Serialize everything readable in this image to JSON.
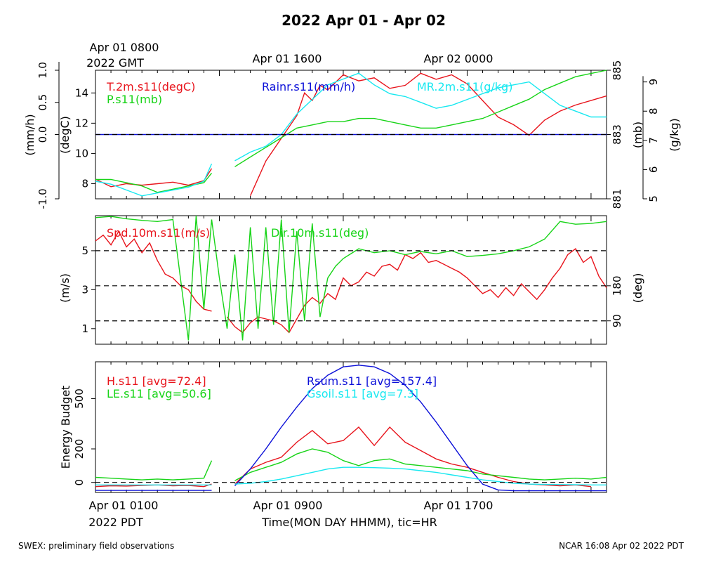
{
  "page": {
    "title": "2022 Apr 01 - Apr 02",
    "footer_left": "SWEX: preliminary field observations",
    "footer_right": "NCAR 16:08 Apr 02 2022 PDT"
  },
  "top_axis": {
    "labels": [
      {
        "text": "Apr 01 0800",
        "text2": "2022 GMT"
      },
      {
        "text": "Apr 01 1600"
      },
      {
        "text": "Apr 02 0000"
      }
    ]
  },
  "bottom_axis": {
    "labels": [
      {
        "text": "Apr 01 0100",
        "text2": "2022 PDT"
      },
      {
        "text": "Apr 01 0900"
      },
      {
        "text": "Apr 01 1700"
      }
    ],
    "xlabel": "Time(MON DAY HHMM), tic=HR"
  },
  "colors": {
    "red": "#e8141c",
    "green": "#18d418",
    "cyan": "#18e8f0",
    "blue": "#0c10d8",
    "black": "#000000"
  },
  "chart_data": [
    {
      "type": "line",
      "panel": "meteorology",
      "x_unit": "hours since Apr 01 0100 PDT",
      "xlim": [
        0,
        33
      ],
      "axes": {
        "rain": {
          "label": "(mm/h)",
          "ylim": [
            -1.0,
            1.0
          ],
          "ticks": [
            "-1.0",
            "0.0",
            "0.5",
            "1.0"
          ],
          "tick_values": [
            -1.0,
            0.0,
            0.5,
            1.0
          ]
        },
        "temp": {
          "label": "(degC)",
          "ylim": [
            7,
            15.5
          ],
          "ticks": [
            "8",
            "10",
            "12",
            "14"
          ],
          "tick_values": [
            8,
            10,
            12,
            14
          ]
        },
        "pres": {
          "label": "(mb)",
          "ylim": [
            881,
            885
          ],
          "ticks": [
            "881",
            "883",
            "885"
          ],
          "tick_values": [
            881,
            883,
            885
          ]
        },
        "mr": {
          "label": "(g/kg)",
          "ylim": [
            5,
            9.4
          ],
          "ticks": [
            "5",
            "6",
            "7",
            "8",
            "9"
          ],
          "tick_values": [
            5,
            6,
            7,
            8,
            9
          ]
        }
      },
      "series": [
        {
          "name": "T.2m.s11(degC)",
          "color_key": "red",
          "axis": "temp",
          "x": [
            0,
            1,
            2,
            3,
            4,
            5,
            6,
            7,
            7.5,
            8.5,
            10,
            11,
            12,
            13,
            13.5,
            14,
            14.5,
            15,
            16,
            17,
            18,
            19,
            20,
            21,
            22,
            23,
            24,
            25,
            26,
            27,
            28,
            29,
            30,
            31,
            32,
            33
          ],
          "y": [
            8.3,
            7.8,
            8.0,
            7.9,
            8.0,
            8.1,
            7.9,
            8.2,
            9.0,
            null,
            7.2,
            9.5,
            11.0,
            12.5,
            14.0,
            13.5,
            14.5,
            14.2,
            15.2,
            14.8,
            15.0,
            14.3,
            14.5,
            15.3,
            14.9,
            15.2,
            14.6,
            13.5,
            12.4,
            11.9,
            11.2,
            12.2,
            12.8,
            13.2,
            13.5,
            13.8
          ]
        },
        {
          "name": "P.s11(mb)",
          "color_key": "green",
          "axis": "pres",
          "x": [
            0,
            1,
            2,
            3,
            4,
            5,
            6,
            7,
            7.5,
            8.5,
            9,
            10,
            11,
            12,
            13,
            14,
            15,
            16,
            17,
            18,
            19,
            20,
            21,
            22,
            23,
            24,
            25,
            26,
            27,
            28,
            29,
            30,
            31,
            32,
            33
          ],
          "y": [
            881.6,
            881.6,
            881.5,
            881.4,
            881.2,
            881.3,
            881.4,
            881.5,
            881.8,
            null,
            882.0,
            882.3,
            882.6,
            882.9,
            883.2,
            883.3,
            883.4,
            883.4,
            883.5,
            883.5,
            883.4,
            883.3,
            883.2,
            883.2,
            883.3,
            883.4,
            883.5,
            883.7,
            883.9,
            884.1,
            884.4,
            884.6,
            884.8,
            884.9,
            885.0
          ]
        },
        {
          "name": "MR.2m.s11(g/kg)",
          "color_key": "cyan",
          "axis": "mr",
          "x": [
            0,
            1,
            2,
            3,
            4,
            5,
            6,
            7,
            7.5,
            8.5,
            9,
            10,
            11,
            12,
            13,
            14,
            15,
            16,
            17,
            18,
            19,
            20,
            21,
            22,
            23,
            24,
            25,
            26,
            27,
            28,
            29,
            30,
            31,
            32,
            33
          ],
          "y": [
            5.6,
            5.5,
            5.3,
            5.1,
            5.2,
            5.3,
            5.4,
            5.6,
            6.2,
            null,
            6.3,
            6.6,
            6.8,
            7.2,
            7.9,
            8.4,
            8.9,
            9.1,
            9.3,
            8.9,
            8.6,
            8.5,
            8.3,
            8.1,
            8.2,
            8.4,
            8.6,
            8.8,
            8.9,
            9.0,
            8.6,
            8.2,
            8.0,
            7.8,
            7.8
          ]
        },
        {
          "name": "Rainr.s11(mm/h)",
          "color_key": "blue",
          "axis": "rain",
          "x": [
            0,
            33
          ],
          "y": [
            0.0,
            0.0
          ]
        }
      ],
      "reference_lines": [
        {
          "axis": "rain",
          "value": 0.0
        }
      ]
    },
    {
      "type": "line",
      "panel": "wind",
      "x_unit": "hours since Apr 01 0100 PDT",
      "xlim": [
        0,
        33
      ],
      "axes": {
        "spd": {
          "label": "(m/s)",
          "ylim": [
            0.2,
            6.8
          ],
          "ticks": [
            "1",
            "3",
            "5"
          ],
          "tick_values": [
            1,
            3,
            5
          ]
        },
        "dir": {
          "label": "(deg)",
          "ylim": [
            30,
            360
          ],
          "ticks": [
            "90",
            "180"
          ],
          "tick_values": [
            90,
            180
          ]
        }
      },
      "series": [
        {
          "name": "Spd.10m.s11(m/s)",
          "color_key": "red",
          "axis": "spd",
          "x": [
            0,
            0.5,
            1,
            1.5,
            2,
            2.5,
            3,
            3.5,
            4,
            4.5,
            5,
            5.5,
            6,
            6.5,
            7,
            7.5,
            8,
            8.5,
            9,
            9.5,
            10,
            10.5,
            11,
            11.5,
            12,
            12.5,
            13,
            13.5,
            14,
            14.5,
            15,
            15.5,
            16,
            16.5,
            17,
            17.5,
            18,
            18.5,
            19,
            19.5,
            20,
            20.5,
            21,
            21.5,
            22,
            22.5,
            23,
            23.5,
            24,
            24.5,
            25,
            25.5,
            26,
            26.5,
            27,
            27.5,
            28,
            28.5,
            29,
            29.5,
            30,
            30.5,
            31,
            31.5,
            32,
            32.5,
            33
          ],
          "y": [
            5.5,
            5.8,
            5.3,
            6.0,
            5.2,
            5.6,
            4.9,
            5.4,
            4.5,
            3.8,
            3.6,
            3.2,
            3.0,
            2.4,
            2.0,
            1.9,
            null,
            1.6,
            1.1,
            0.8,
            1.3,
            1.6,
            1.5,
            1.4,
            1.2,
            0.8,
            1.5,
            2.2,
            2.6,
            2.3,
            2.8,
            2.5,
            3.6,
            3.2,
            3.4,
            3.9,
            3.7,
            4.2,
            4.3,
            4.0,
            4.8,
            4.6,
            4.9,
            4.4,
            4.5,
            4.3,
            4.1,
            3.9,
            3.6,
            3.2,
            2.8,
            3.0,
            2.6,
            3.1,
            2.7,
            3.3,
            2.9,
            2.5,
            3.0,
            3.6,
            4.1,
            4.8,
            5.1,
            4.4,
            4.7,
            3.7,
            3.1
          ]
        },
        {
          "name": "Dir.10m.s11(deg)",
          "color_key": "green",
          "axis": "dir",
          "x": [
            0,
            1,
            2,
            3,
            4,
            5,
            6,
            6.5,
            7,
            7.5,
            8,
            8.5,
            9,
            9.5,
            10,
            10.5,
            11,
            11.5,
            12,
            12.5,
            13,
            13.5,
            14,
            14.5,
            15,
            15.5,
            16,
            17,
            18,
            19,
            20,
            21,
            22,
            23,
            24,
            25,
            26,
            27,
            28,
            29,
            30,
            31,
            32,
            33
          ],
          "y": [
            355,
            358,
            352,
            348,
            345,
            350,
            40,
            360,
            120,
            350,
            200,
            70,
            260,
            40,
            330,
            70,
            330,
            80,
            350,
            60,
            320,
            90,
            340,
            100,
            200,
            230,
            250,
            275,
            265,
            270,
            260,
            268,
            262,
            270,
            255,
            258,
            262,
            270,
            280,
            300,
            345,
            338,
            340,
            345
          ]
        }
      ],
      "reference_lines": [
        {
          "axis": "dir",
          "value": 90
        },
        {
          "axis": "dir",
          "value": 180
        },
        {
          "axis": "dir",
          "value": 270
        }
      ]
    },
    {
      "type": "line",
      "panel": "energy",
      "x_unit": "hours since Apr 01 0100 PDT",
      "xlim": [
        0,
        33
      ],
      "ylabel": "Energy Budget",
      "ylim": [
        -60,
        720
      ],
      "yticks": [
        "0",
        "200",
        "500"
      ],
      "ytick_values": [
        0,
        200,
        500
      ],
      "series": [
        {
          "name": "H.s11",
          "legend": "H.s11 [avg=72.4]",
          "color_key": "red",
          "x": [
            0,
            1,
            2,
            3,
            4,
            5,
            6,
            7,
            7.5,
            8.5,
            9,
            10,
            11,
            12,
            13,
            14,
            15,
            16,
            17,
            18,
            19,
            20,
            21,
            22,
            23,
            24,
            25,
            26,
            27,
            28,
            29,
            30,
            31,
            32
          ],
          "y": [
            -25,
            -20,
            -22,
            -18,
            -15,
            -20,
            -18,
            -25,
            -10,
            null,
            -10,
            80,
            120,
            150,
            240,
            310,
            230,
            250,
            330,
            220,
            330,
            240,
            190,
            140,
            110,
            90,
            60,
            30,
            5,
            -10,
            -15,
            -20,
            -15,
            -25
          ]
        },
        {
          "name": "LE.s11",
          "legend": "LE.s11 [avg=50.6]",
          "color_key": "green",
          "x": [
            0,
            1,
            2,
            3,
            4,
            5,
            6,
            7,
            7.5,
            8.5,
            9,
            10,
            11,
            12,
            13,
            14,
            15,
            16,
            17,
            18,
            19,
            20,
            21,
            22,
            23,
            24,
            25,
            26,
            27,
            28,
            29,
            30,
            31,
            32,
            33
          ],
          "y": [
            30,
            25,
            20,
            15,
            20,
            15,
            20,
            25,
            130,
            null,
            10,
            60,
            90,
            120,
            170,
            200,
            180,
            130,
            100,
            130,
            140,
            110,
            100,
            90,
            80,
            70,
            50,
            40,
            30,
            20,
            15,
            20,
            25,
            20,
            30
          ]
        },
        {
          "name": "Rsum.s11",
          "legend": "Rsum.s11 [avg=157.4]",
          "color_key": "blue",
          "x": [
            0,
            1,
            2,
            3,
            4,
            5,
            6,
            7,
            7.5,
            8.5,
            9,
            10,
            11,
            12,
            13,
            14,
            15,
            16,
            17,
            18,
            19,
            20,
            21,
            22,
            23,
            24,
            25,
            26,
            27,
            28,
            29,
            30,
            31,
            32,
            33
          ],
          "y": [
            -48,
            -48,
            -48,
            -48,
            -48,
            -48,
            -48,
            -48,
            -48,
            null,
            -20,
            80,
            200,
            330,
            450,
            560,
            640,
            690,
            700,
            690,
            650,
            580,
            480,
            360,
            230,
            100,
            -10,
            -45,
            -50,
            -50,
            -50,
            -50,
            -50,
            -50,
            -50
          ]
        },
        {
          "name": "Gsoil.s11",
          "legend": "Gsoil.s11 [avg=7.3]",
          "color_key": "cyan",
          "x": [
            0,
            1,
            2,
            3,
            4,
            5,
            6,
            7,
            7.5,
            8.5,
            9,
            10,
            11,
            12,
            13,
            14,
            15,
            16,
            17,
            18,
            19,
            20,
            21,
            22,
            23,
            24,
            25,
            26,
            27,
            28,
            29,
            30,
            31,
            32,
            33
          ],
          "y": [
            -15,
            -15,
            -15,
            -15,
            -15,
            -15,
            -15,
            -15,
            -15,
            null,
            -10,
            -5,
            5,
            20,
            40,
            60,
            80,
            90,
            90,
            88,
            85,
            80,
            70,
            60,
            45,
            30,
            15,
            5,
            -5,
            -10,
            -12,
            -13,
            -14,
            -15,
            -15
          ]
        }
      ],
      "reference_lines": [
        {
          "value": 0
        }
      ]
    }
  ]
}
